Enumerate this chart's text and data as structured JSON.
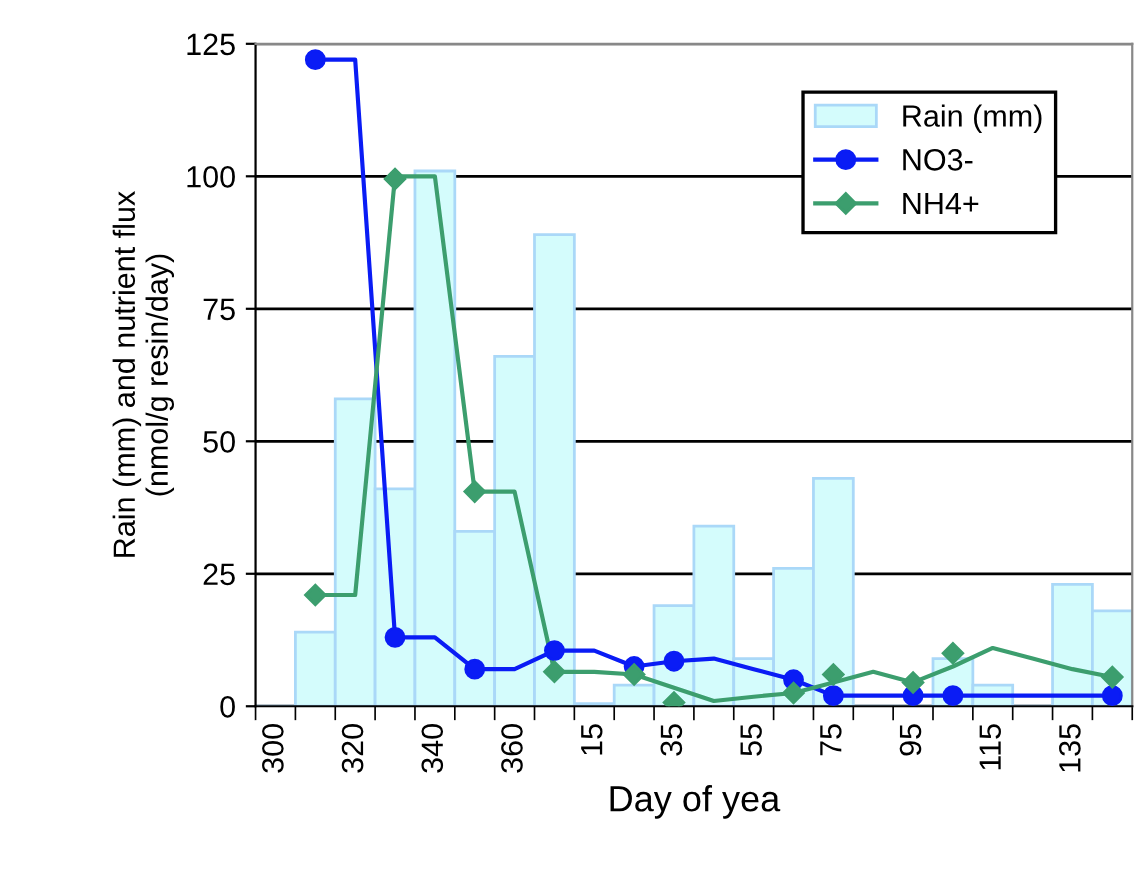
{
  "chart_data": {
    "type": "bar",
    "xlabel": "Day of yea",
    "ylabel": "Rain (mm) and nutrient flux\n(nmol/g resin/day)",
    "categories": [
      "300",
      null,
      "320",
      null,
      "340",
      null,
      "360",
      null,
      "15",
      null,
      "35",
      null,
      "55",
      null,
      "75",
      null,
      "95",
      null,
      "115",
      null,
      "135",
      null
    ],
    "series": [
      {
        "name": "Rain (mm)",
        "color": "#d4fcfc",
        "values": [
          null,
          14,
          58,
          41,
          101,
          33,
          66,
          89,
          0.5,
          4,
          19,
          34,
          9,
          26,
          43,
          null,
          null,
          9,
          4,
          null,
          23,
          18
        ]
      },
      {
        "type": "line",
        "color": "#0a1cf5",
        "marker": "none",
        "values": [
          null,
          122,
          122,
          13,
          13,
          7,
          7,
          10.5,
          10.5,
          7.5,
          8.5,
          9,
          7,
          5,
          2,
          2,
          2,
          2,
          2,
          2,
          2,
          2
        ]
      },
      {
        "type": "line",
        "color": "#3c9e6e",
        "marker": "none",
        "values": [
          null,
          21,
          21,
          100,
          100,
          40.5,
          40.5,
          6.5,
          6.5,
          6,
          3.5,
          1,
          1.8,
          2.5,
          4.5,
          6.5,
          4.5,
          7.5,
          11,
          9,
          7,
          5.5
        ]
      },
      {
        "name": "NO3-",
        "type": "scatter",
        "color": "#0a1cf5",
        "marker": "circle",
        "values": [
          null,
          122,
          null,
          13,
          null,
          7,
          null,
          10.5,
          null,
          7.5,
          8.5,
          null,
          null,
          5,
          2,
          null,
          2,
          2,
          null,
          null,
          null,
          2
        ]
      },
      {
        "name": "NH4+",
        "type": "scatter",
        "color": "#3c9e6e",
        "marker": "diamond",
        "values": [
          null,
          21,
          null,
          99.5,
          null,
          40.5,
          null,
          6.5,
          null,
          6,
          0.7,
          null,
          null,
          2.5,
          6,
          null,
          4.5,
          10,
          null,
          null,
          null,
          5.5
        ]
      }
    ],
    "ylim": [
      0,
      125
    ],
    "yticks": [
      0,
      25,
      50,
      75,
      100,
      125
    ],
    "grid": "y",
    "legend": "top right"
  }
}
